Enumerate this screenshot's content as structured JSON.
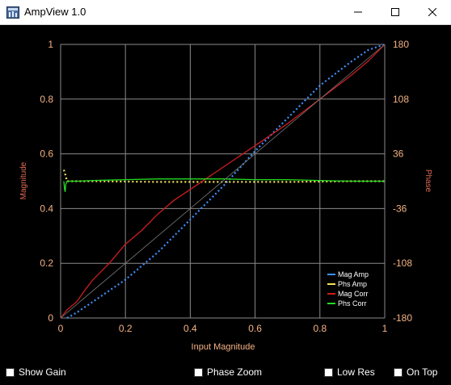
{
  "window": {
    "title": "AmpView 1.0"
  },
  "window_controls": {
    "minimize": "minimize",
    "maximize": "maximize",
    "close": "close"
  },
  "chart_data": {
    "type": "line",
    "xlabel": "Input Magnitude",
    "ylabel": "Magnitude",
    "y2label": "Phase",
    "xlim": [
      0,
      1
    ],
    "ylim": [
      0,
      1
    ],
    "y2lim": [
      -180,
      180
    ],
    "x_ticks": [
      "0",
      "0.2",
      "0.4",
      "0.6",
      "0.8",
      "1"
    ],
    "y_ticks": [
      "0",
      "0.2",
      "0.4",
      "0.6",
      "0.8",
      "1"
    ],
    "y2_ticks": [
      "-180",
      "-108",
      "-36",
      "36",
      "108",
      "180"
    ],
    "grid": true,
    "legend_position": "bottom-right",
    "series": [
      {
        "name": "Mag Amp",
        "axis": "left",
        "color": "#3f8fff",
        "style": "dotted",
        "x": [
          0.02,
          0.05,
          0.1,
          0.15,
          0.2,
          0.3,
          0.4,
          0.5,
          0.6,
          0.7,
          0.8,
          0.9,
          0.95,
          1.0
        ],
        "y": [
          0.0,
          0.02,
          0.06,
          0.1,
          0.14,
          0.24,
          0.36,
          0.48,
          0.61,
          0.73,
          0.85,
          0.94,
          0.98,
          1.0
        ]
      },
      {
        "name": "Phs Amp",
        "axis": "right",
        "color": "#f5e15b",
        "style": "dotted",
        "x": [
          0.01,
          0.015,
          0.02,
          0.1,
          0.3,
          0.5,
          0.7,
          0.9,
          1.0
        ],
        "y": [
          15,
          8,
          0,
          0,
          -1,
          -1,
          -1,
          0,
          0
        ]
      },
      {
        "name": "Mag Corr",
        "axis": "left",
        "color": "#cc1e1e",
        "style": "solid",
        "x": [
          0,
          0.02,
          0.05,
          0.08,
          0.1,
          0.15,
          0.2,
          0.25,
          0.3,
          0.35,
          0.4,
          0.5,
          0.6,
          0.7,
          0.8,
          0.9,
          0.95,
          1.0
        ],
        "y": [
          0.0,
          0.03,
          0.06,
          0.11,
          0.14,
          0.2,
          0.27,
          0.32,
          0.38,
          0.43,
          0.47,
          0.55,
          0.63,
          0.71,
          0.8,
          0.89,
          0.94,
          1.0
        ]
      },
      {
        "name": "Phs Corr",
        "axis": "right",
        "color": "#22dd22",
        "style": "solid",
        "x": [
          0.01,
          0.012,
          0.014,
          0.016,
          0.02,
          0.05,
          0.1,
          0.2,
          0.3,
          0.4,
          0.5,
          0.6,
          0.7,
          0.8,
          0.9,
          1.0
        ],
        "y": [
          0,
          -10,
          -14,
          -4,
          0,
          0,
          1,
          2,
          3,
          3,
          3,
          2,
          2,
          1,
          0,
          0
        ]
      },
      {
        "name": "",
        "axis": "left",
        "color": "#777777",
        "style": "thin",
        "x": [
          0,
          1
        ],
        "y": [
          0,
          1
        ]
      }
    ]
  },
  "checkboxes": {
    "show_gain": "Show Gain",
    "phase_zoom": "Phase Zoom",
    "low_res": "Low Res",
    "on_top": "On Top"
  }
}
